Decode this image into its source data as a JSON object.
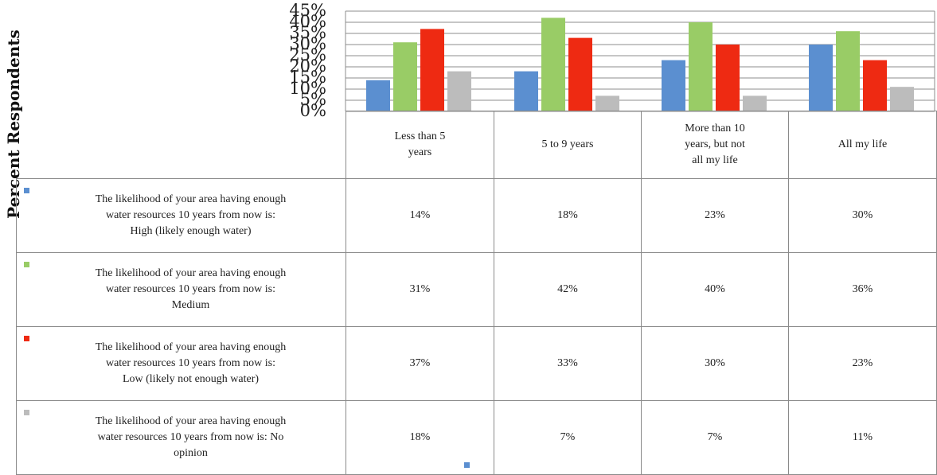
{
  "chart_data": {
    "type": "bar",
    "ylabel": "Percent Respondents",
    "ylim": [
      0,
      45
    ],
    "yticks": [
      "0%",
      "5%",
      "10%",
      "15%",
      "20%",
      "25%",
      "30%",
      "35%",
      "40%",
      "45%"
    ],
    "grid": true,
    "categories": [
      "Less than 5 years",
      "5 to 9 years",
      "More than 10 years, but not all my life",
      "All my life"
    ],
    "category_labels": [
      [
        "Less than 5",
        "years"
      ],
      [
        "5 to 9 years"
      ],
      [
        "More than 10",
        "years, but not",
        "all my life"
      ],
      [
        "All my life"
      ]
    ],
    "series": [
      {
        "name": "The likelihood of your area having enough water resources 10 years from now is: High (likely enough water)",
        "name_lines": [
          "The likelihood of your area having enough",
          "water resources 10 years from now is:",
          "High (likely enough water)"
        ],
        "color": "#5b8fd0",
        "values": [
          14,
          18,
          23,
          30
        ],
        "labels": [
          "14%",
          "18%",
          "23%",
          "30%"
        ]
      },
      {
        "name": "The likelihood of your area having enough water resources 10 years from now is: Medium",
        "name_lines": [
          "The likelihood of your area having enough",
          "water resources 10 years from now is:",
          "Medium"
        ],
        "color": "#99cc66",
        "values": [
          31,
          42,
          40,
          36
        ],
        "labels": [
          "31%",
          "42%",
          "40%",
          "36%"
        ]
      },
      {
        "name": "The likelihood of your area having enough water resources 10 years from now is: Low (likely not enough water)",
        "name_lines": [
          "The likelihood of your area having enough",
          "water resources 10 years from now is:",
          "Low (likely not enough water)"
        ],
        "color": "#ee2a12",
        "values": [
          37,
          33,
          30,
          23
        ],
        "labels": [
          "37%",
          "33%",
          "30%",
          "23%"
        ]
      },
      {
        "name": "The likelihood of your area having enough water resources 10 years from now is: No opinion",
        "name_lines": [
          "The likelihood of your area having enough",
          "water resources 10 years from now is: No",
          "opinion"
        ],
        "color": "#bcbcbc",
        "values": [
          18,
          7,
          7,
          11
        ],
        "labels": [
          "18%",
          "7%",
          "7%",
          "11%"
        ]
      }
    ]
  }
}
